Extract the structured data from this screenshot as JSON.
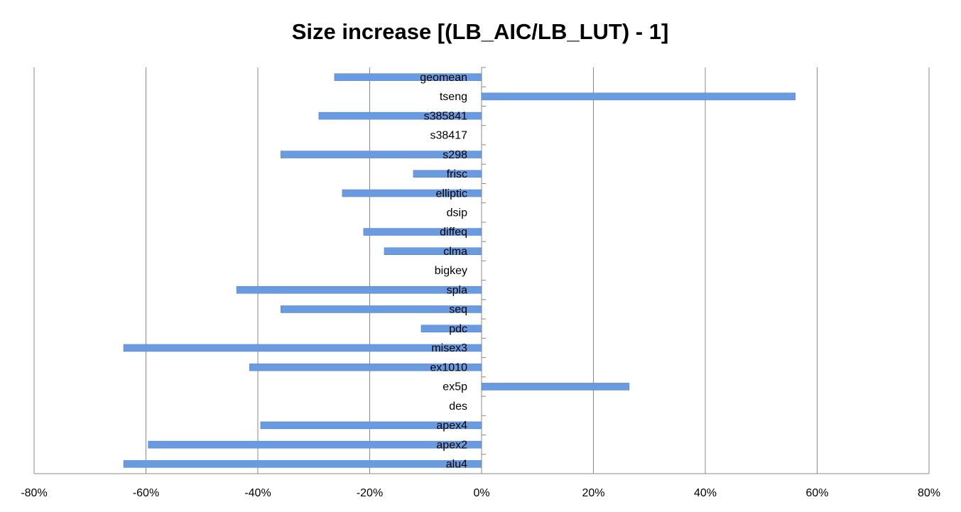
{
  "chart_data": {
    "type": "hbar",
    "title": "Size increase [(LB_AIC/LB_LUT) - 1]",
    "categories": [
      "alu4",
      "apex2",
      "apex4",
      "des",
      "ex5p",
      "ex1010",
      "misex3",
      "pdc",
      "seq",
      "spla",
      "bigkey",
      "clma",
      "diffeq",
      "dsip",
      "elliptic",
      "frisc",
      "s298",
      "s38417",
      "s385841",
      "tseng",
      "geomean"
    ],
    "values": [
      -64.0,
      -59.6,
      -39.5,
      0,
      26.4,
      -41.5,
      -64.0,
      -10.8,
      -35.9,
      -43.8,
      0,
      -17.4,
      -21.1,
      0,
      -24.9,
      -12.2,
      -35.9,
      0,
      -29.1,
      56.1,
      -26.3
    ],
    "color": "#6a9be0",
    "xlim": [
      -80,
      80
    ],
    "xticks": [
      {
        "value": -80,
        "label": "-80%"
      },
      {
        "value": -60,
        "label": "-60%"
      },
      {
        "value": -40,
        "label": "-40%"
      },
      {
        "value": -20,
        "label": "-20%"
      },
      {
        "value": 0,
        "label": "0%"
      },
      {
        "value": 20,
        "label": "20%"
      },
      {
        "value": 40,
        "label": "40%"
      },
      {
        "value": 60,
        "label": "60%"
      },
      {
        "value": 80,
        "label": "80%"
      }
    ],
    "grid": true
  }
}
